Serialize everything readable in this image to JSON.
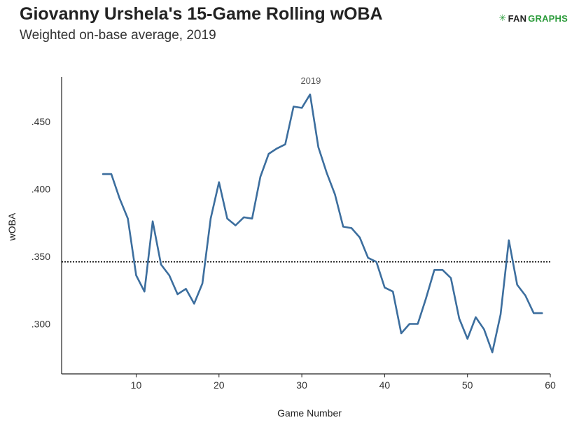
{
  "header": {
    "title": "Giovanny Urshela's 15-Game Rolling wOBA",
    "subtitle": "Weighted on-base average, 2019",
    "logo_mark": "✳",
    "logo_fan": "FAN",
    "logo_graphs": "GRAPHS"
  },
  "colors": {
    "line": "#3c6e9e",
    "axis": "#222222",
    "reference": "#000000"
  },
  "chart_data": {
    "type": "line",
    "title": "Giovanny Urshela's 15-Game Rolling wOBA",
    "subtitle": "Weighted on-base average, 2019",
    "xlabel": "Game Number",
    "ylabel": "wOBA",
    "xlim": [
      1,
      60
    ],
    "ylim": [
      0.263,
      0.483
    ],
    "x_ticks": [
      10,
      20,
      30,
      40,
      50,
      60
    ],
    "y_ticks": [
      0.3,
      0.35,
      0.4,
      0.45
    ],
    "y_tick_labels": [
      ".300",
      ".350",
      ".400",
      ".450"
    ],
    "grid": false,
    "reference_line": {
      "y": 0.346,
      "style": "dotted"
    },
    "series": [
      {
        "name": "2019",
        "x": [
          6,
          7,
          8,
          9,
          10,
          11,
          12,
          13,
          14,
          15,
          16,
          17,
          18,
          19,
          20,
          21,
          22,
          23,
          24,
          25,
          26,
          27,
          28,
          29,
          30,
          31,
          32,
          33,
          34,
          35,
          36,
          37,
          38,
          39,
          40,
          41,
          42,
          43,
          44,
          45,
          46,
          47,
          48,
          49,
          50,
          51,
          52,
          53,
          54,
          55,
          56,
          57,
          58,
          59
        ],
        "y": [
          0.411,
          0.411,
          0.393,
          0.378,
          0.336,
          0.324,
          0.376,
          0.344,
          0.336,
          0.322,
          0.326,
          0.315,
          0.33,
          0.378,
          0.405,
          0.378,
          0.373,
          0.379,
          0.378,
          0.409,
          0.426,
          0.43,
          0.433,
          0.461,
          0.46,
          0.47,
          0.431,
          0.412,
          0.396,
          0.372,
          0.371,
          0.364,
          0.349,
          0.346,
          0.327,
          0.324,
          0.293,
          0.3,
          0.3,
          0.319,
          0.34,
          0.34,
          0.334,
          0.304,
          0.289,
          0.305,
          0.296,
          0.279,
          0.307,
          0.362,
          0.329,
          0.321,
          0.308,
          0.308
        ]
      }
    ]
  }
}
